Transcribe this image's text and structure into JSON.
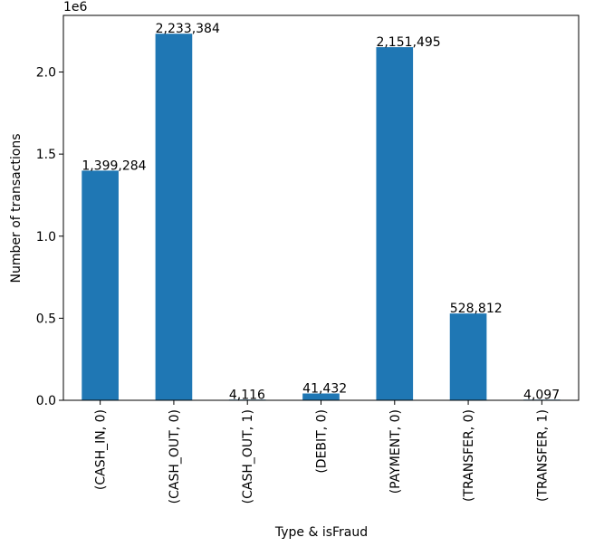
{
  "chart_data": {
    "type": "bar",
    "categories": [
      "(CASH_IN, 0)",
      "(CASH_OUT, 0)",
      "(CASH_OUT, 1)",
      "(DEBIT, 0)",
      "(PAYMENT, 0)",
      "(TRANSFER, 0)",
      "(TRANSFER, 1)"
    ],
    "values": [
      1399284,
      2233384,
      4116,
      41432,
      2151495,
      528812,
      4097
    ],
    "value_labels": [
      "1,399,284",
      "2,233,384",
      "4,116",
      "41,432",
      "2,151,495",
      "528,812",
      "4,097"
    ],
    "xlabel": "Type & isFraud",
    "ylabel": "Number of transactions",
    "offset_text": "1e6",
    "ylim": [
      0,
      2345053
    ],
    "yticks": [
      0,
      500000,
      1000000,
      1500000,
      2000000
    ],
    "ytick_labels": [
      "0.0",
      "0.5",
      "1.0",
      "1.5",
      "2.0"
    ],
    "grid": false,
    "bar_color": "#1f77b4"
  }
}
